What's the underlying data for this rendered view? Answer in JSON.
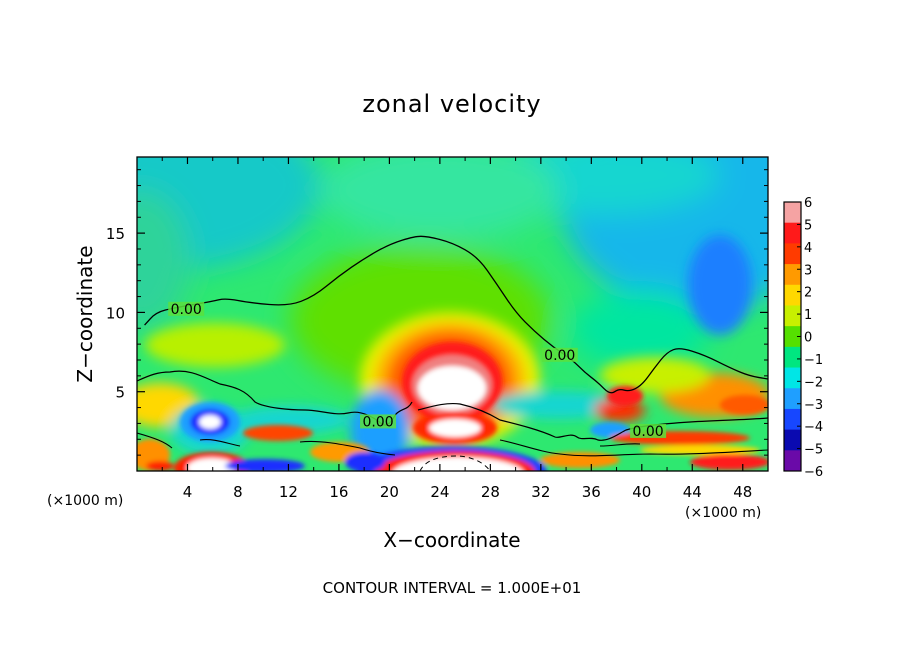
{
  "chart_data": {
    "type": "heatmap",
    "title": "zonal velocity",
    "xlabel": "X−coordinate",
    "ylabel": "Z−coordinate",
    "x_unit_left": "(×1000 m)",
    "x_unit_right": "(×1000 m)",
    "footer": "CONTOUR INTERVAL = 1.000E+01",
    "xlim": [
      0,
      50
    ],
    "ylim": [
      0,
      19.8
    ],
    "x_ticks": [
      4,
      8,
      12,
      16,
      20,
      24,
      28,
      32,
      36,
      40,
      44,
      48
    ],
    "x_tick_labels": [
      "4",
      "8",
      "12",
      "16",
      "20",
      "24",
      "28",
      "32",
      "36",
      "40",
      "44",
      "48"
    ],
    "y_ticks": [
      5,
      10,
      15
    ],
    "y_tick_labels": [
      "5",
      "10",
      "15"
    ],
    "colorbar": {
      "levels": [
        6,
        5,
        4,
        3,
        2,
        1,
        0,
        -1,
        -2,
        -3,
        -4,
        -5,
        -6
      ],
      "labels": [
        "6",
        "5",
        "4",
        "3",
        "2",
        "1",
        "0",
        "−1",
        "−2",
        "−3",
        "−4",
        "−5",
        "−6"
      ],
      "colors": [
        "#f5a3a3",
        "#ff1a1a",
        "#ff3b00",
        "#ff9a00",
        "#ffd800",
        "#c8f000",
        "#55e000",
        "#00e680",
        "#00e6e6",
        "#1f9fff",
        "#1747ff",
        "#0a0ab0",
        "#6a0aa8"
      ]
    },
    "contour_labels": [
      {
        "text": "0.00",
        "x": 3.9,
        "z": 10.1
      },
      {
        "text": "0.00",
        "x": 33.5,
        "z": 7.2
      },
      {
        "text": "0.00",
        "x": 19.1,
        "z": 3.0
      },
      {
        "text": "0.00",
        "x": 40.5,
        "z": 2.4
      }
    ],
    "zero_contour_main": [
      [
        0.6,
        9.2
      ],
      [
        1.5,
        10.0
      ],
      [
        3.0,
        10.3
      ],
      [
        6.0,
        10.7
      ],
      [
        7.0,
        10.9
      ],
      [
        9.0,
        10.6
      ],
      [
        12.0,
        10.4
      ],
      [
        14.0,
        11.0
      ],
      [
        16.0,
        12.3
      ],
      [
        18.0,
        13.4
      ],
      [
        20.0,
        14.3
      ],
      [
        22.0,
        14.8
      ],
      [
        23.0,
        14.8
      ],
      [
        25.0,
        14.4
      ],
      [
        27.0,
        13.5
      ],
      [
        28.5,
        11.8
      ],
      [
        30.0,
        10.0
      ],
      [
        31.5,
        8.8
      ],
      [
        33.0,
        7.8
      ],
      [
        34.5,
        7.0
      ],
      [
        35.5,
        6.2
      ],
      [
        36.5,
        5.6
      ],
      [
        37.5,
        4.8
      ],
      [
        38.2,
        5.2
      ],
      [
        39.0,
        5.0
      ],
      [
        40.0,
        5.4
      ],
      [
        41.0,
        6.5
      ],
      [
        42.0,
        7.5
      ],
      [
        43.0,
        7.8
      ],
      [
        45.0,
        7.3
      ],
      [
        47.0,
        6.5
      ],
      [
        48.5,
        6.0
      ],
      [
        50.0,
        5.8
      ]
    ],
    "velocity_features": [
      {
        "x": 23.5,
        "z": 5.5,
        "value": 6
      },
      {
        "x": 24.0,
        "z": 2.8,
        "value": 6
      },
      {
        "x": 24.5,
        "z": 0.5,
        "value": 6
      },
      {
        "x": 6.0,
        "z": 0.5,
        "value": 6
      },
      {
        "x": 5.8,
        "z": 3.2,
        "value": -5
      },
      {
        "x": 19.5,
        "z": 2.5,
        "value": -3
      },
      {
        "x": 45.0,
        "z": 11.0,
        "value": -3
      },
      {
        "x": 4.0,
        "z": 8.0,
        "value": 1
      },
      {
        "x": 13.0,
        "z": 2.5,
        "value": 4
      },
      {
        "x": 47.5,
        "z": 4.0,
        "value": 3
      }
    ]
  }
}
